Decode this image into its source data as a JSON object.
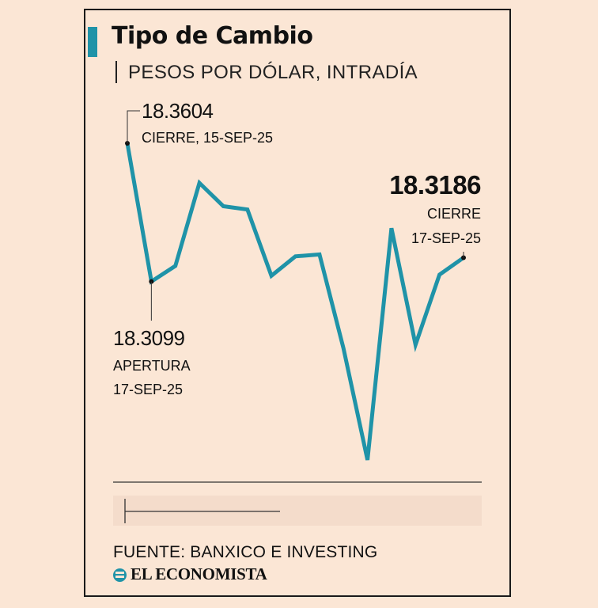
{
  "header": {
    "title": "Tipo de Cambio",
    "subtitle": "PESOS POR DÓLAR, INTRADÍA"
  },
  "colors": {
    "background": "#fbe6d5",
    "accent": "#1f93a8",
    "band": "#f4dccb"
  },
  "chart_data": {
    "type": "line",
    "title": "Tipo de Cambio",
    "subtitle": "PESOS POR DÓLAR, INTRADÍA",
    "xlabel": "",
    "ylabel": "",
    "ylim": [
      18.24,
      18.37
    ],
    "grid": false,
    "series": [
      {
        "name": "Pesos por dólar",
        "values": [
          18.3604,
          18.3099,
          18.3156,
          18.3459,
          18.3374,
          18.3362,
          18.312,
          18.3191,
          18.3198,
          18.2855,
          18.2447,
          18.3294,
          18.2868,
          18.3124,
          18.3186
        ]
      }
    ],
    "annotations": [
      {
        "index": 0,
        "value": "18.3604",
        "label": "CIERRE, 15-SEP-25",
        "emphasis": false
      },
      {
        "index": 1,
        "value": "18.3099",
        "label": "APERTURA",
        "date": "17-SEP-25",
        "emphasis": false
      },
      {
        "index": 14,
        "value": "18.3186",
        "label": "CIERRE",
        "date": "17-SEP-25",
        "emphasis": true
      }
    ]
  },
  "footer": {
    "source": "FUENTE: BANXICO E INVESTING",
    "logo": "EL ECONOMISTA"
  }
}
